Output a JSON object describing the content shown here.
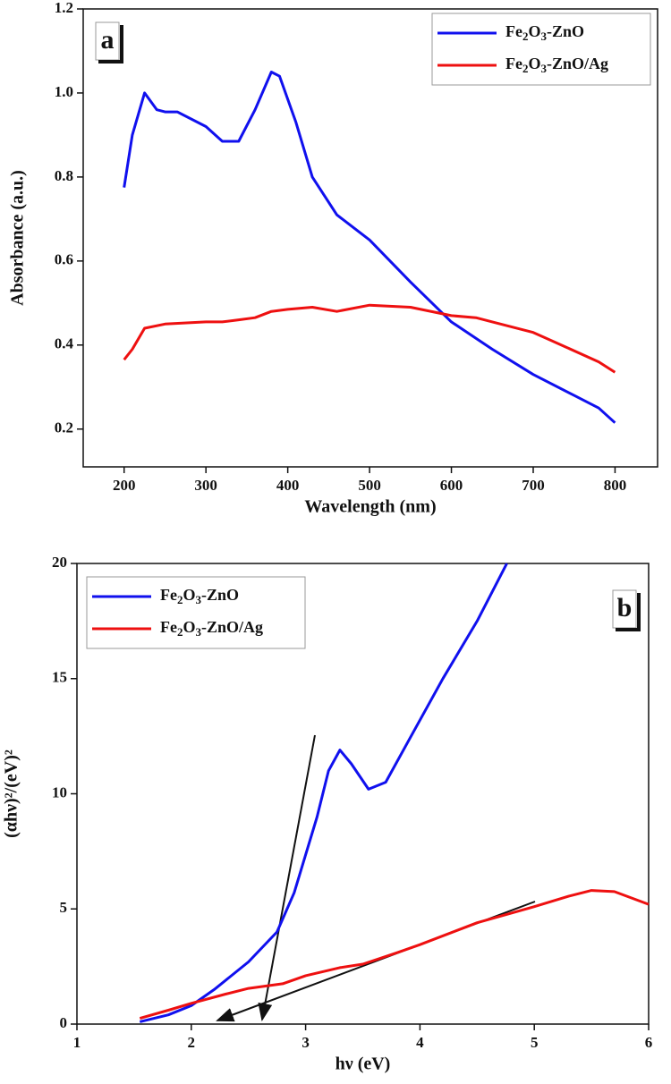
{
  "chart_data": [
    {
      "type": "line",
      "panel_label": "a",
      "xlabel": "Wavelength (nm)",
      "ylabel": "Absorbance (a.u.)",
      "xlim": [
        150,
        852
      ],
      "ylim": [
        0.11,
        1.2
      ],
      "xticks": [
        200,
        300,
        400,
        500,
        600,
        700,
        800
      ],
      "yticks": [
        0.2,
        0.4,
        0.6,
        0.8,
        {
          "value": 1,
          "label": "1.0"
        },
        1.2
      ],
      "legend": "upper right",
      "series": [
        {
          "name": "Fe2O3-ZnO",
          "color": "#1010ee",
          "x": [
            200,
            210,
            225,
            240,
            250,
            265,
            300,
            320,
            340,
            360,
            380,
            390,
            410,
            430,
            460,
            500,
            550,
            600,
            650,
            700,
            750,
            780,
            800
          ],
          "values": [
            0.775,
            0.9,
            1.0,
            0.96,
            0.955,
            0.955,
            0.92,
            0.885,
            0.885,
            0.96,
            1.05,
            1.04,
            0.93,
            0.8,
            0.71,
            0.65,
            0.55,
            0.455,
            0.39,
            0.33,
            0.28,
            0.25,
            0.215
          ]
        },
        {
          "name": "Fe2O3-ZnO/Ag",
          "color": "#ee1010",
          "x": [
            200,
            210,
            225,
            250,
            300,
            320,
            340,
            360,
            380,
            400,
            430,
            460,
            500,
            550,
            600,
            630,
            650,
            700,
            740,
            780,
            800
          ],
          "values": [
            0.365,
            0.39,
            0.44,
            0.45,
            0.455,
            0.455,
            0.46,
            0.465,
            0.48,
            0.485,
            0.49,
            0.48,
            0.495,
            0.49,
            0.47,
            0.465,
            0.455,
            0.43,
            0.395,
            0.36,
            0.335
          ]
        }
      ]
    },
    {
      "type": "line",
      "panel_label": "b",
      "xlabel": "hν (eV)",
      "ylabel": "(αhν)²/(eV)²",
      "xlim": [
        1,
        6
      ],
      "ylim": [
        0,
        20
      ],
      "xticks": [
        1,
        2,
        3,
        4,
        5,
        6
      ],
      "yticks": [
        0,
        5,
        10,
        15,
        20
      ],
      "legend": "upper left",
      "series": [
        {
          "name": "Fe2O3-ZnO",
          "color": "#1010ee",
          "x": [
            1.55,
            1.8,
            2.0,
            2.2,
            2.5,
            2.75,
            2.9,
            3.1,
            3.2,
            3.3,
            3.4,
            3.55,
            3.7,
            3.9,
            4.2,
            4.5,
            4.76
          ],
          "values": [
            0.1,
            0.4,
            0.8,
            1.5,
            2.7,
            4.0,
            5.7,
            9.0,
            11.0,
            11.9,
            11.3,
            10.2,
            10.5,
            12.3,
            15.0,
            17.5,
            20
          ]
        },
        {
          "name": "Fe2O3-ZnO/Ag",
          "color": "#ee1010",
          "x": [
            1.55,
            1.8,
            2.0,
            2.3,
            2.5,
            2.8,
            3.0,
            3.3,
            3.5,
            3.8,
            4.0,
            4.5,
            5.0,
            5.3,
            5.5,
            5.7,
            6.0
          ],
          "values": [
            0.25,
            0.6,
            0.9,
            1.3,
            1.55,
            1.75,
            2.1,
            2.45,
            2.6,
            3.1,
            3.45,
            4.4,
            5.1,
            5.55,
            5.8,
            5.75,
            5.2
          ]
        }
      ]
    }
  ]
}
